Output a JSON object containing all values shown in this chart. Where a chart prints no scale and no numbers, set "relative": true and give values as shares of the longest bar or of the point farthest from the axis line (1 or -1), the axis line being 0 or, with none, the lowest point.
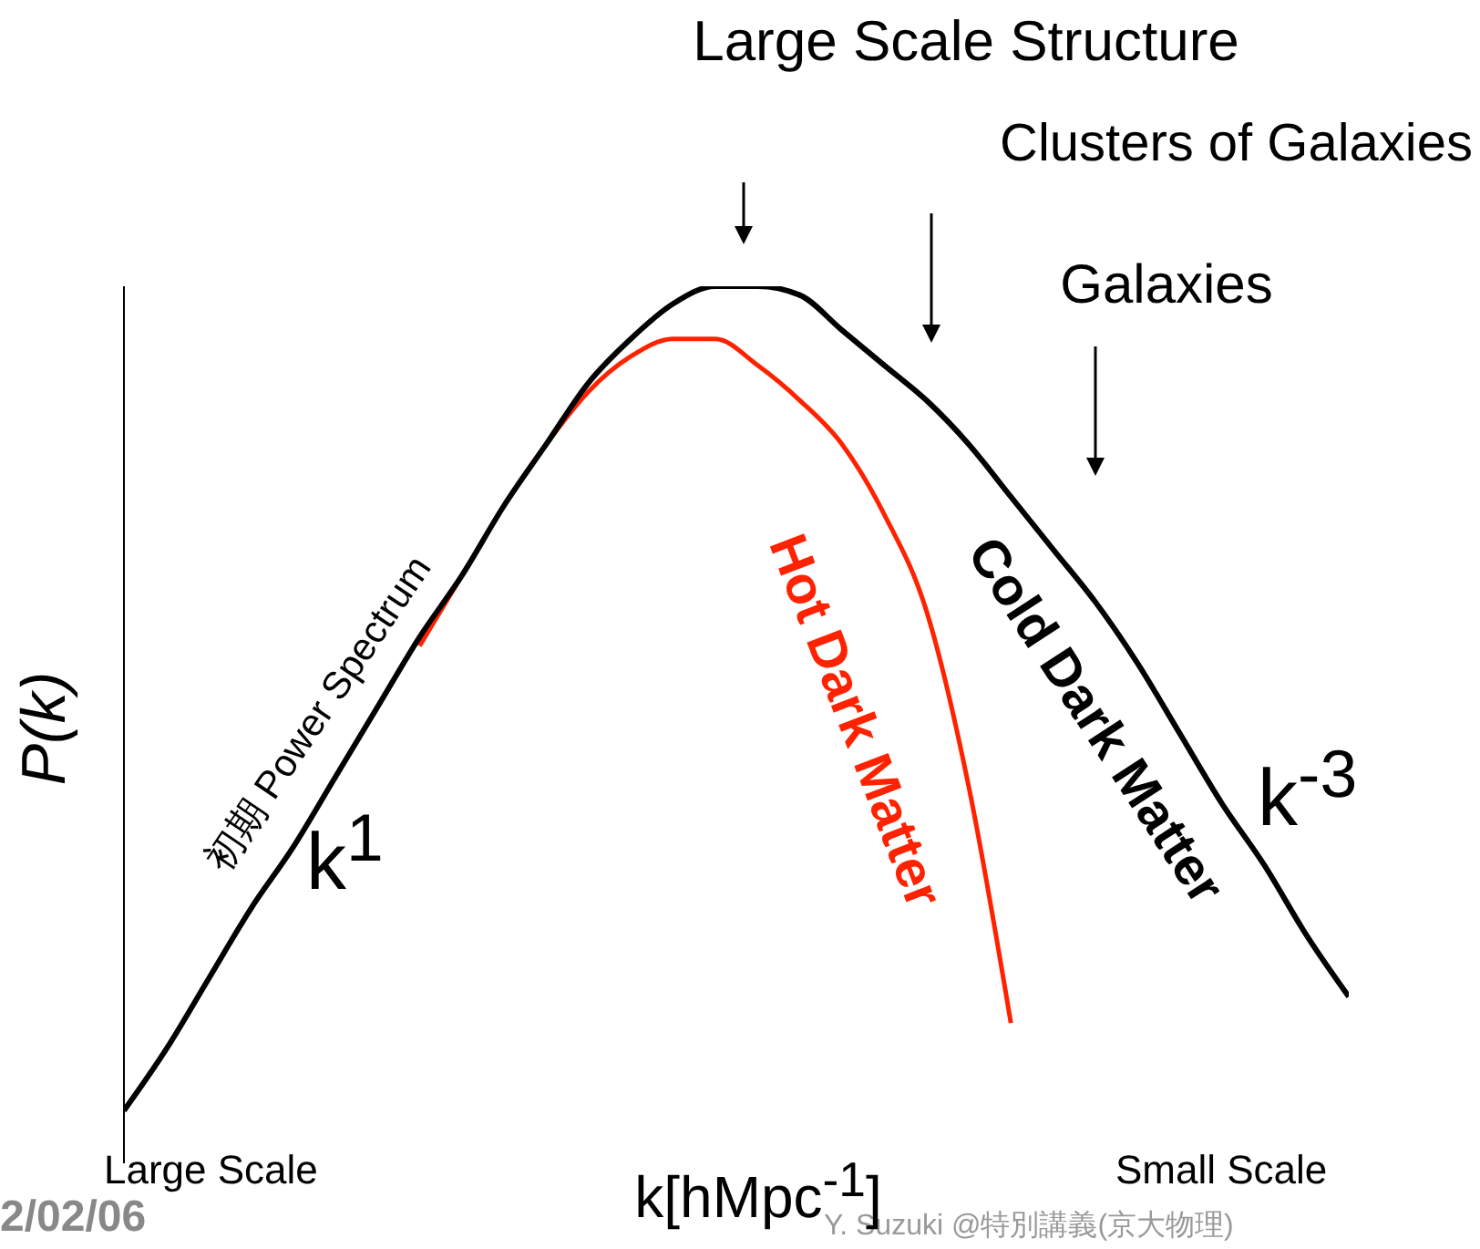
{
  "chart_data": {
    "type": "line",
    "relative": true,
    "xlabel": "k[hMpc$^{-1}$]",
    "ylabel": "P(k)",
    "categories": [
      null,
      null,
      null,
      null,
      null,
      null,
      null,
      null,
      null,
      null,
      null,
      null,
      null,
      null,
      null,
      null,
      null,
      null,
      null,
      null,
      null,
      null,
      null,
      null,
      null,
      null,
      null,
      null,
      null,
      null
    ],
    "series": [
      {
        "name": "Cold Dark Matter",
        "color": "#000000",
        "values": [
          0.06,
          0.13,
          0.21,
          0.29,
          0.36,
          0.44,
          0.52,
          0.6,
          0.67,
          0.75,
          0.82,
          0.89,
          0.94,
          0.98,
          1,
          1,
          0.99,
          0.95,
          0.91,
          0.87,
          0.82,
          0.76,
          0.7,
          0.64,
          0.57,
          0.49,
          0.41,
          0.34,
          0.26,
          0.19
        ]
      },
      {
        "name": "Hot Dark Matter",
        "color": "#ff2200",
        "values": [
          null,
          null,
          null,
          null,
          null,
          null,
          null,
          0.59,
          0.67,
          0.75,
          0.82,
          0.88,
          0.92,
          0.94,
          0.94,
          0.91,
          0.87,
          0.82,
          0.74,
          0.63,
          0.43,
          0.16,
          null,
          null,
          null,
          null,
          null,
          null,
          null,
          null
        ]
      }
    ],
    "annotations": [
      "Large Scale Structure",
      "Clusters of Galaxies",
      "Galaxies",
      "初期 Power Spectrum",
      "k$^{1}$",
      "k$^{-3}$",
      "Large Scale",
      "Small Scale",
      "2/02/06",
      "Y. Suzuki @特別講義(京大物理)"
    ]
  }
}
